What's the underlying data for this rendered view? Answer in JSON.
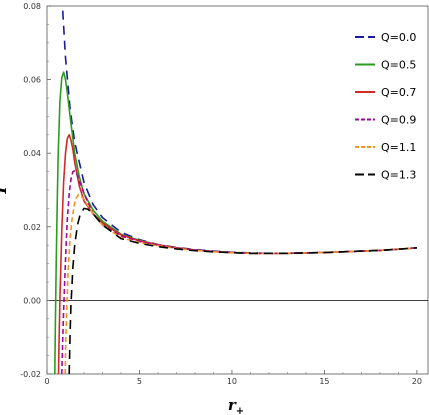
{
  "chart_data": {
    "type": "line",
    "xlabel": "r",
    "xlabel_sub": "+",
    "ylabel": "T",
    "xlim": [
      0,
      20.6
    ],
    "ylim": [
      -0.02,
      0.08
    ],
    "xticks": [
      0,
      5,
      10,
      15,
      20
    ],
    "xtick_labels": [
      "0",
      "5",
      "10",
      "15",
      "20"
    ],
    "yticks": [
      -0.02,
      0.0,
      0.02,
      0.04,
      0.06,
      0.08
    ],
    "ytick_labels": [
      "-0.02",
      "0.00",
      "0.02",
      "0.04",
      "0.06",
      "0.08"
    ],
    "grid": false,
    "legend_position": "top-right",
    "zero_line": true,
    "series": [
      {
        "name": "Q=0.0",
        "color": "#1a1a9e",
        "dash": "long-dash",
        "x": [
          0.7,
          0.8,
          1.0,
          1.25,
          1.5,
          2.0,
          2.5,
          3.0,
          4.0,
          5.0,
          6.0,
          7.0,
          8.0,
          9.0,
          10.0,
          11.0,
          12.0,
          13.0,
          14.0,
          15.0,
          16.0,
          17.0,
          18.0,
          19.0,
          20.0
        ],
        "y": [
          0.095,
          0.083,
          0.066,
          0.052,
          0.043,
          0.032,
          0.026,
          0.0225,
          0.0185,
          0.0165,
          0.0152,
          0.0144,
          0.0138,
          0.0134,
          0.0131,
          0.0129,
          0.0128,
          0.0128,
          0.0129,
          0.013,
          0.0132,
          0.0134,
          0.0136,
          0.0139,
          0.0143
        ]
      },
      {
        "name": "Q=0.5",
        "color": "#2a9d1f",
        "dash": "solid",
        "x": [
          0.42,
          0.45,
          0.5,
          0.55,
          0.6,
          0.7,
          0.8,
          0.9,
          1.0,
          1.1,
          1.25,
          1.5,
          1.75,
          2.0,
          2.5,
          3.0,
          4.0,
          5.0,
          6.0,
          7.0,
          8.0,
          9.0,
          10.0,
          11.0,
          12.0,
          13.0,
          14.0,
          15.0,
          16.0,
          17.0,
          18.0,
          19.0,
          20.0
        ],
        "y": [
          -0.02,
          -0.008,
          0.01,
          0.026,
          0.039,
          0.054,
          0.0605,
          0.062,
          0.06,
          0.0565,
          0.05,
          0.04,
          0.0335,
          0.029,
          0.0245,
          0.0215,
          0.018,
          0.0163,
          0.0151,
          0.0143,
          0.0137,
          0.0133,
          0.013,
          0.0128,
          0.0128,
          0.0128,
          0.0129,
          0.013,
          0.0132,
          0.0134,
          0.0136,
          0.0139,
          0.0143
        ]
      },
      {
        "name": "Q=0.7",
        "color": "#d12a26",
        "dash": "solid",
        "x": [
          0.62,
          0.65,
          0.7,
          0.75,
          0.8,
          0.9,
          1.0,
          1.1,
          1.2,
          1.3,
          1.4,
          1.5,
          1.75,
          2.0,
          2.5,
          3.0,
          4.0,
          5.0,
          6.0,
          7.0,
          8.0,
          9.0,
          10.0,
          11.0,
          12.0,
          13.0,
          14.0,
          15.0,
          16.0,
          17.0,
          18.0,
          19.0,
          20.0
        ],
        "y": [
          -0.02,
          -0.012,
          0.0,
          0.01,
          0.019,
          0.032,
          0.04,
          0.044,
          0.045,
          0.0435,
          0.041,
          0.0375,
          0.031,
          0.027,
          0.0235,
          0.021,
          0.0178,
          0.0162,
          0.0151,
          0.0143,
          0.0137,
          0.0133,
          0.013,
          0.0128,
          0.0128,
          0.0128,
          0.0129,
          0.013,
          0.0132,
          0.0134,
          0.0136,
          0.0139,
          0.0143
        ]
      },
      {
        "name": "Q=0.9",
        "color": "#990b99",
        "dash": "short-dash",
        "x": [
          0.8,
          0.85,
          0.9,
          1.0,
          1.1,
          1.2,
          1.3,
          1.4,
          1.5,
          1.6,
          1.75,
          2.0,
          2.5,
          3.0,
          4.0,
          5.0,
          6.0,
          7.0,
          8.0,
          9.0,
          10.0,
          11.0,
          12.0,
          13.0,
          14.0,
          15.0,
          16.0,
          17.0,
          18.0,
          19.0,
          20.0
        ],
        "y": [
          -0.02,
          -0.011,
          -0.003,
          0.011,
          0.022,
          0.029,
          0.033,
          0.035,
          0.0352,
          0.0345,
          0.0325,
          0.029,
          0.0235,
          0.0205,
          0.0175,
          0.016,
          0.015,
          0.0142,
          0.0137,
          0.0133,
          0.013,
          0.0128,
          0.0128,
          0.0128,
          0.0129,
          0.013,
          0.0132,
          0.0134,
          0.0136,
          0.0139,
          0.0143
        ]
      },
      {
        "name": "Q=1.1",
        "color": "#f39422",
        "dash": "short-dash",
        "x": [
          0.98,
          1.02,
          1.08,
          1.15,
          1.25,
          1.35,
          1.5,
          1.6,
          1.7,
          1.8,
          2.0,
          2.25,
          2.5,
          3.0,
          4.0,
          5.0,
          6.0,
          7.0,
          8.0,
          9.0,
          10.0,
          11.0,
          12.0,
          13.0,
          14.0,
          15.0,
          16.0,
          17.0,
          18.0,
          19.0,
          20.0
        ],
        "y": [
          -0.02,
          -0.01,
          0.0,
          0.009,
          0.017,
          0.022,
          0.0265,
          0.028,
          0.0287,
          0.0285,
          0.0275,
          0.0255,
          0.0235,
          0.0205,
          0.017,
          0.0157,
          0.0148,
          0.0141,
          0.0136,
          0.0132,
          0.013,
          0.0128,
          0.0128,
          0.0128,
          0.0129,
          0.013,
          0.0132,
          0.0134,
          0.0136,
          0.0139,
          0.0143
        ]
      },
      {
        "name": "Q=1.3",
        "color": "#000000",
        "dash": "long-dash",
        "x": [
          1.2,
          1.25,
          1.3,
          1.4,
          1.5,
          1.65,
          1.8,
          2.0,
          2.2,
          2.5,
          3.0,
          4.0,
          5.0,
          6.0,
          7.0,
          8.0,
          9.0,
          10.0,
          11.0,
          12.0,
          13.0,
          14.0,
          15.0,
          16.0,
          17.0,
          18.0,
          19.0,
          20.0
        ],
        "y": [
          -0.02,
          -0.009,
          -0.001,
          0.009,
          0.015,
          0.0205,
          0.0235,
          0.025,
          0.0248,
          0.0235,
          0.0205,
          0.0168,
          0.0155,
          0.0146,
          0.014,
          0.0135,
          0.0132,
          0.013,
          0.0128,
          0.0128,
          0.0128,
          0.0129,
          0.013,
          0.0132,
          0.0134,
          0.0136,
          0.0139,
          0.0143
        ]
      }
    ]
  }
}
